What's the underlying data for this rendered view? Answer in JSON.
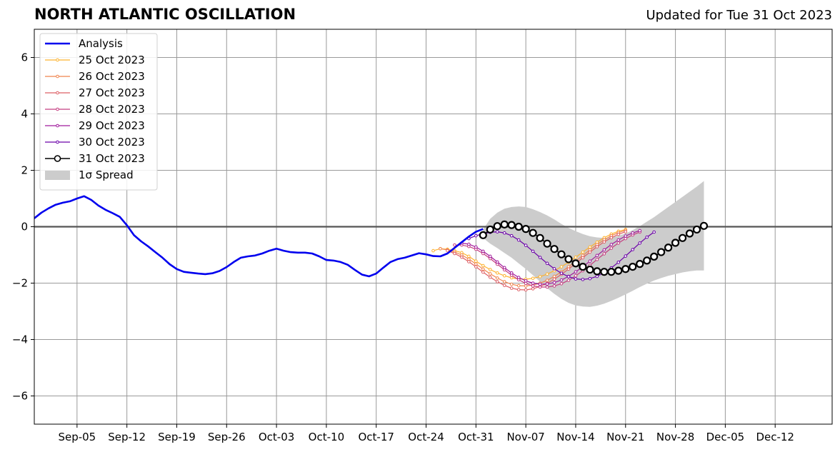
{
  "header": {
    "title": "NORTH ATLANTIC OSCILLATION",
    "updated": "Updated for Tue 31 Oct 2023"
  },
  "chart_data": {
    "type": "line",
    "title": "NORTH ATLANTIC OSCILLATION",
    "subtitle": "Updated for Tue 31 Oct 2023",
    "xlabel": "",
    "ylabel": "",
    "xlim": [
      "2023-08-30",
      "2023-12-20"
    ],
    "ylim": [
      -7,
      7
    ],
    "x_ticks": [
      "2023-09-05",
      "2023-09-12",
      "2023-09-19",
      "2023-09-26",
      "2023-10-03",
      "2023-10-10",
      "2023-10-17",
      "2023-10-24",
      "2023-10-31",
      "2023-11-07",
      "2023-11-14",
      "2023-11-21",
      "2023-11-28",
      "2023-12-05",
      "2023-12-12"
    ],
    "x_tick_labels": [
      "Sep-05",
      "Sep-12",
      "Sep-19",
      "Sep-26",
      "Oct-03",
      "Oct-10",
      "Oct-17",
      "Oct-24",
      "Oct-31",
      "Nov-07",
      "Nov-14",
      "Nov-21",
      "Nov-28",
      "Dec-05",
      "Dec-12"
    ],
    "y_ticks": [
      -6,
      -4,
      -2,
      0,
      2,
      4,
      6
    ],
    "y_tick_labels": [
      "−6",
      "−4",
      "−2",
      "0",
      "2",
      "4",
      "6"
    ],
    "grid": true,
    "zero_line": true,
    "legend_position": "top-left",
    "legend": [
      {
        "label": "Analysis",
        "kind": "line",
        "color": "#0000ee"
      },
      {
        "label": "25 Oct 2023",
        "kind": "dotline",
        "color": "#fdb22f"
      },
      {
        "label": "26 Oct 2023",
        "kind": "dotline",
        "color": "#f0844d"
      },
      {
        "label": "27 Oct 2023",
        "kind": "dotline",
        "color": "#de5f65"
      },
      {
        "label": "28 Oct 2023",
        "kind": "dotline",
        "color": "#c43e80"
      },
      {
        "label": "29 Oct 2023",
        "kind": "dotline",
        "color": "#a01a9c"
      },
      {
        "label": "30 Oct 2023",
        "kind": "dotline",
        "color": "#6a00a8"
      },
      {
        "label": "31 Oct 2023",
        "kind": "circleline",
        "color": "#000000"
      },
      {
        "label": "1σ Spread",
        "kind": "patch",
        "color": "#cccccc"
      }
    ],
    "analysis": {
      "name": "Analysis",
      "color": "#0000ee",
      "start": "2023-08-30",
      "step_days": 1,
      "values": [
        0.3,
        0.5,
        0.65,
        0.78,
        0.85,
        0.9,
        1.0,
        1.08,
        0.95,
        0.75,
        0.6,
        0.48,
        0.35,
        0.05,
        -0.3,
        -0.52,
        -0.7,
        -0.9,
        -1.1,
        -1.33,
        -1.5,
        -1.6,
        -1.63,
        -1.66,
        -1.68,
        -1.65,
        -1.57,
        -1.43,
        -1.25,
        -1.1,
        -1.05,
        -1.02,
        -0.95,
        -0.85,
        -0.78,
        -0.85,
        -0.9,
        -0.92,
        -0.92,
        -0.95,
        -1.05,
        -1.18,
        -1.2,
        -1.25,
        -1.35,
        -1.53,
        -1.7,
        -1.76,
        -1.66,
        -1.45,
        -1.25,
        -1.15,
        -1.1,
        -1.02,
        -0.94,
        -0.98,
        -1.04,
        -1.05,
        -0.95,
        -0.75,
        -0.55,
        -0.35,
        -0.18,
        -0.08
      ]
    },
    "forecasts": [
      {
        "name": "25 Oct 2023",
        "color": "#fdb22f",
        "start": "2023-10-25",
        "step_days": 1,
        "values": [
          -0.85,
          -0.78,
          -0.8,
          -0.85,
          -0.92,
          -1.05,
          -1.22,
          -1.38,
          -1.52,
          -1.64,
          -1.74,
          -1.81,
          -1.85,
          -1.86,
          -1.83,
          -1.77,
          -1.68,
          -1.56,
          -1.42,
          -1.26,
          -1.08,
          -0.9,
          -0.72,
          -0.55,
          -0.39,
          -0.26,
          -0.16,
          -0.1
        ]
      },
      {
        "name": "26 Oct 2023",
        "color": "#f0844d",
        "start": "2023-10-26",
        "step_days": 1,
        "values": [
          -0.78,
          -0.82,
          -0.9,
          -1.0,
          -1.15,
          -1.32,
          -1.5,
          -1.67,
          -1.82,
          -1.95,
          -2.04,
          -2.09,
          -2.1,
          -2.07,
          -2.0,
          -1.9,
          -1.76,
          -1.6,
          -1.42,
          -1.22,
          -1.02,
          -0.82,
          -0.63,
          -0.46,
          -0.32,
          -0.21,
          -0.13
        ]
      },
      {
        "name": "27 Oct 2023",
        "color": "#de5f65",
        "start": "2023-10-27",
        "step_days": 1,
        "values": [
          -0.85,
          -0.95,
          -1.08,
          -1.24,
          -1.42,
          -1.61,
          -1.79,
          -1.95,
          -2.08,
          -2.18,
          -2.23,
          -2.24,
          -2.2,
          -2.12,
          -2.01,
          -1.86,
          -1.69,
          -1.5,
          -1.3,
          -1.1,
          -0.9,
          -0.71,
          -0.54,
          -0.39,
          -0.27,
          -0.18
        ]
      },
      {
        "name": "28 Oct 2023",
        "color": "#c43e80",
        "start": "2023-10-28",
        "step_days": 1,
        "values": [
          -0.65,
          -0.65,
          -0.7,
          -0.8,
          -0.95,
          -1.13,
          -1.33,
          -1.53,
          -1.72,
          -1.88,
          -2.01,
          -2.1,
          -2.14,
          -2.14,
          -2.1,
          -2.02,
          -1.9,
          -1.74,
          -1.56,
          -1.37,
          -1.16,
          -0.96,
          -0.76,
          -0.58,
          -0.42,
          -0.29,
          -0.19
        ]
      },
      {
        "name": "29 Oct 2023",
        "color": "#a01a9c",
        "start": "2023-10-29",
        "step_days": 1,
        "values": [
          -0.58,
          -0.62,
          -0.72,
          -0.87,
          -1.05,
          -1.25,
          -1.45,
          -1.64,
          -1.8,
          -1.92,
          -2.0,
          -2.04,
          -2.03,
          -1.98,
          -1.89,
          -1.76,
          -1.6,
          -1.42,
          -1.22,
          -1.02,
          -0.82,
          -0.63,
          -0.47,
          -0.33,
          -0.22,
          -0.14
        ]
      },
      {
        "name": "30 Oct 2023",
        "color": "#6a00a8",
        "start": "2023-10-30",
        "step_days": 1,
        "values": [
          -0.42,
          -0.32,
          -0.25,
          -0.2,
          -0.18,
          -0.22,
          -0.32,
          -0.47,
          -0.66,
          -0.87,
          -1.09,
          -1.3,
          -1.49,
          -1.65,
          -1.77,
          -1.85,
          -1.87,
          -1.84,
          -1.76,
          -1.63,
          -1.46,
          -1.26,
          -1.04,
          -0.81,
          -0.58,
          -0.37,
          -0.19
        ]
      },
      {
        "name": "31 Oct 2023",
        "color": "#000000",
        "start": "2023-11-01",
        "step_days": 1,
        "values": [
          -0.3,
          -0.1,
          0.02,
          0.08,
          0.06,
          0.0,
          -0.08,
          -0.22,
          -0.4,
          -0.6,
          -0.79,
          -0.98,
          -1.15,
          -1.3,
          -1.42,
          -1.52,
          -1.58,
          -1.6,
          -1.6,
          -1.56,
          -1.5,
          -1.42,
          -1.32,
          -1.2,
          -1.06,
          -0.9,
          -0.74,
          -0.57,
          -0.4,
          -0.24,
          -0.1,
          0.03
        ]
      }
    ],
    "spread": {
      "name": "1σ Spread",
      "color": "#cccccc",
      "start": "2023-11-01",
      "step_days": 1,
      "upper": [
        -0.1,
        0.28,
        0.5,
        0.64,
        0.7,
        0.72,
        0.7,
        0.62,
        0.52,
        0.4,
        0.26,
        0.1,
        -0.04,
        -0.16,
        -0.26,
        -0.34,
        -0.38,
        -0.4,
        -0.38,
        -0.32,
        -0.24,
        -0.12,
        0.02,
        0.18,
        0.34,
        0.52,
        0.7,
        0.88,
        1.06,
        1.24,
        1.42,
        1.62
      ],
      "lower": [
        -0.4,
        -0.6,
        -0.76,
        -0.93,
        -1.1,
        -1.3,
        -1.5,
        -1.72,
        -1.95,
        -2.18,
        -2.38,
        -2.56,
        -2.7,
        -2.79,
        -2.83,
        -2.84,
        -2.8,
        -2.73,
        -2.63,
        -2.52,
        -2.4,
        -2.27,
        -2.14,
        -2.02,
        -1.91,
        -1.82,
        -1.74,
        -1.68,
        -1.62,
        -1.58,
        -1.55,
        -1.55
      ]
    }
  }
}
